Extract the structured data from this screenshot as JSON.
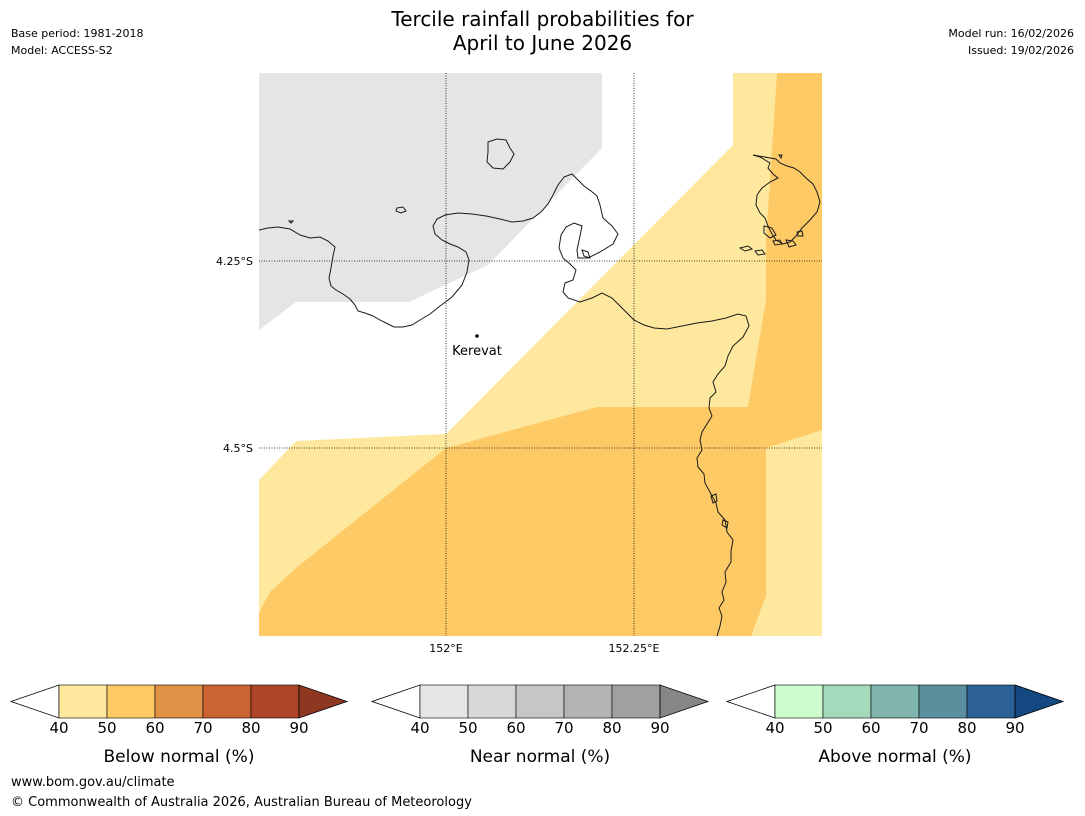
{
  "header": {
    "base_period": "Base period: 1981-2018",
    "model": "Model: ACCESS-S2",
    "title_line1": "Tercile rainfall probabilities for",
    "title_line2": "April to June 2026",
    "model_run": "Model run: 16/02/2026",
    "issued": "Issued: 19/02/2026"
  },
  "map": {
    "lat_labels": [
      "4.25°S",
      "4.5°S"
    ],
    "lon_labels": [
      "152°E",
      "152.25°E"
    ],
    "places": [
      {
        "name": "Kerevat"
      }
    ]
  },
  "colorbars": [
    {
      "name": "Below normal (%)",
      "ticks": [
        "40",
        "50",
        "60",
        "70",
        "80",
        "90"
      ],
      "colors": [
        "#fee89e",
        "#fdca66",
        "#e09246",
        "#cc6332",
        "#ad4526",
        "#8e3822"
      ]
    },
    {
      "name": "Near normal (%)",
      "ticks": [
        "40",
        "50",
        "60",
        "70",
        "80",
        "90"
      ],
      "colors": [
        "#e5e5e5",
        "#d8d8d8",
        "#c6c6c6",
        "#b3b3b3",
        "#a0a0a0",
        "#878787"
      ]
    },
    {
      "name": "Above normal (%)",
      "ticks": [
        "40",
        "50",
        "60",
        "70",
        "80",
        "90"
      ],
      "colors": [
        "#ccfbcc",
        "#a4d9bb",
        "#7fb5ad",
        "#5a909e",
        "#2c6196",
        "#134881"
      ]
    }
  ],
  "footer": {
    "url": "www.bom.gov.au/climate",
    "copyright": "© Commonwealth of Australia 2026, Australian Bureau of Meteorology"
  }
}
